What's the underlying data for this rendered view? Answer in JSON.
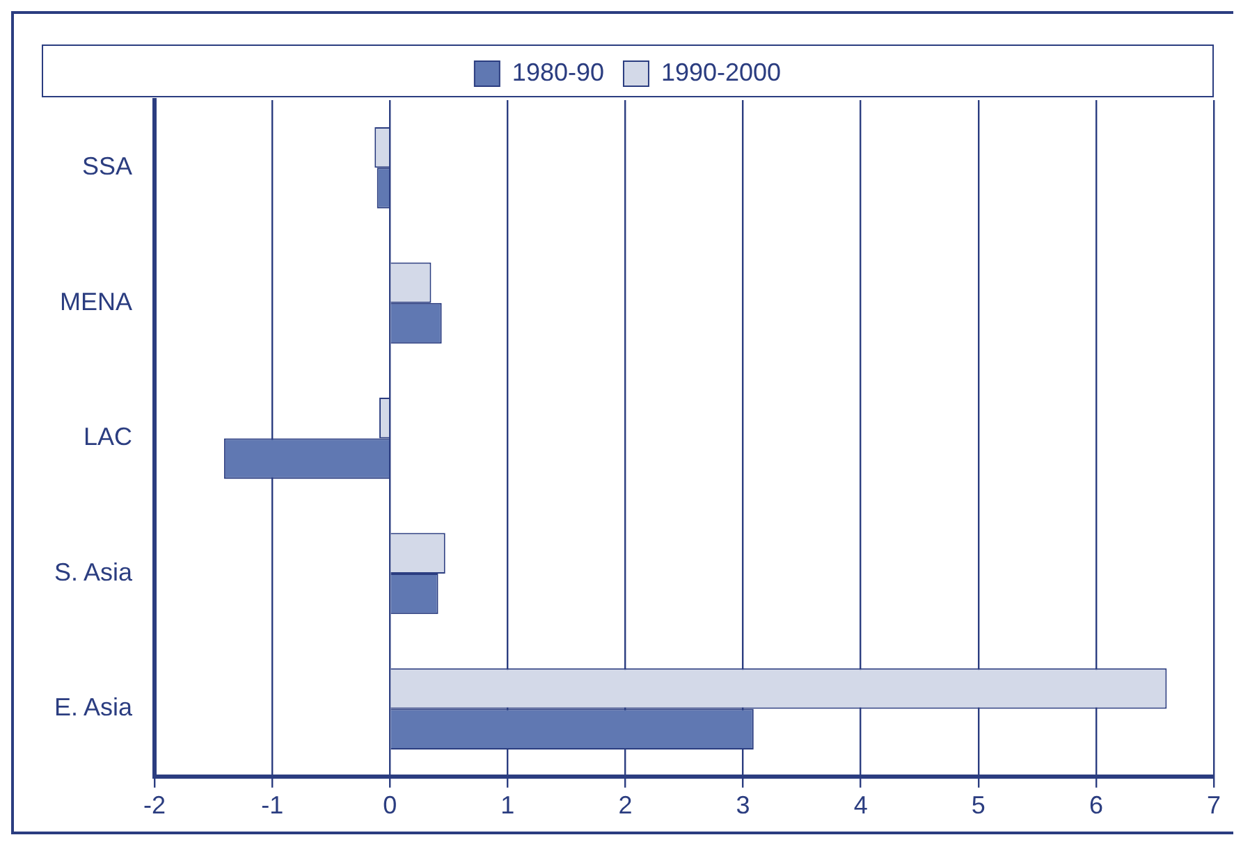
{
  "chart_data": {
    "type": "bar",
    "orientation": "horizontal",
    "categories": [
      "SSA",
      "MENA",
      "LAC",
      "S. Asia",
      "E. Asia"
    ],
    "series": [
      {
        "name": "1980-90",
        "color": "#6078b2",
        "values": [
          -0.11,
          0.44,
          -1.41,
          0.41,
          3.09
        ]
      },
      {
        "name": "1990-2000",
        "color": "#d3d9e8",
        "values": [
          -0.13,
          0.35,
          -0.09,
          0.47,
          6.6
        ]
      }
    ],
    "xlim": [
      -2,
      7
    ],
    "xticks": [
      -2,
      -1,
      0,
      1,
      2,
      3,
      4,
      5,
      6,
      7
    ],
    "grid": "x",
    "legend": "top"
  }
}
